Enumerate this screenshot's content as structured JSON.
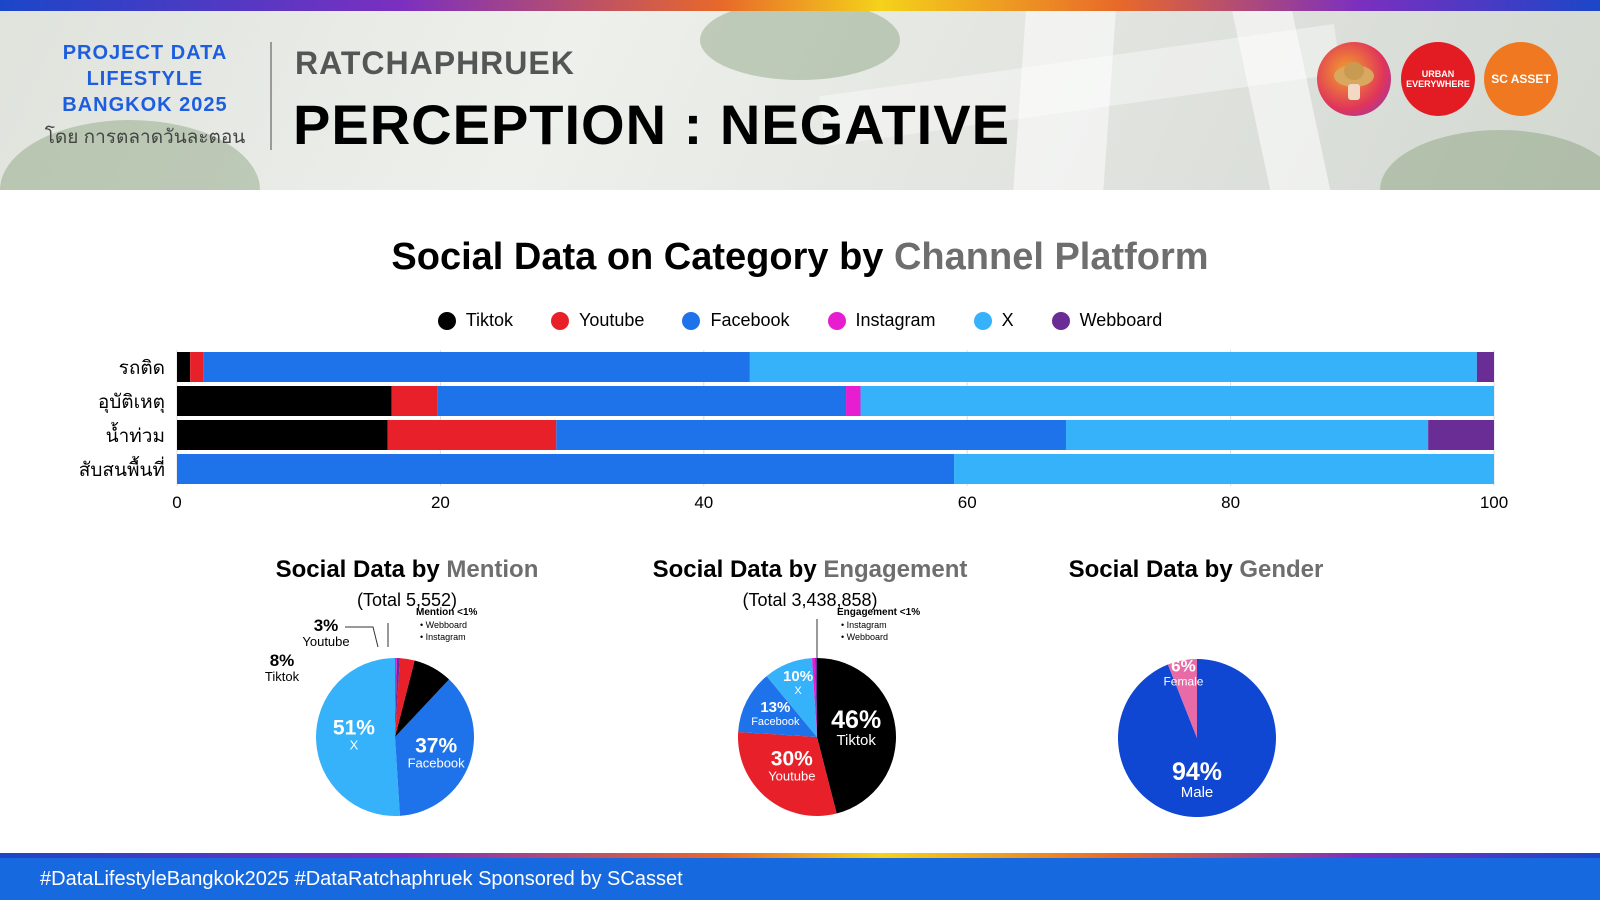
{
  "header": {
    "brand_lines": [
      "PROJECT DATA",
      "LIFESTYLE",
      "BANGKOK 2025"
    ],
    "brand_sub": "โดย การตลาดวันละตอน",
    "location": "RATCHAPHRUEK",
    "title": "PERCEPTION : NEGATIVE",
    "logos": {
      "urban": "URBAN EVERYWHERE",
      "sc": "SC ASSET"
    }
  },
  "main_title": {
    "part1": "Social Data on Category by ",
    "part2": "Channel Platform"
  },
  "colors": {
    "Tiktok": "#000000",
    "Youtube": "#e8202a",
    "Facebook": "#1f73ea",
    "Instagram": "#e61ed0",
    "X": "#36b2fb",
    "Webboard": "#6a2d96",
    "Male": "#0f46d2",
    "Female": "#e86aa6"
  },
  "chart_data": [
    {
      "type": "bar",
      "orientation": "horizontal",
      "stacked": true,
      "categories": [
        "รถติด",
        "อุบัติเหตุ",
        "น้ำท่วม",
        "สับสนพื้นที่"
      ],
      "series": [
        {
          "name": "Tiktok",
          "values": [
            1,
            16.3,
            16,
            0
          ]
        },
        {
          "name": "Youtube",
          "values": [
            1,
            3.5,
            12.8,
            0
          ]
        },
        {
          "name": "Facebook",
          "values": [
            41.5,
            31,
            38.7,
            59
          ]
        },
        {
          "name": "Instagram",
          "values": [
            0,
            1.1,
            0,
            0
          ]
        },
        {
          "name": "X",
          "values": [
            55.2,
            48.1,
            27.5,
            41
          ]
        },
        {
          "name": "Webboard",
          "values": [
            1.3,
            0,
            5,
            0
          ]
        }
      ],
      "xlim": [
        0,
        100
      ],
      "xticks": [
        0,
        20,
        40,
        60,
        80,
        100
      ],
      "legend_position": "top-center",
      "grid": true
    },
    {
      "type": "pie",
      "title": {
        "part1": "Social Data by ",
        "part2": "Mention"
      },
      "subtitle": "(Total 5,552)",
      "slices": [
        {
          "label": "X",
          "value": 51,
          "display": "51%"
        },
        {
          "label": "Facebook",
          "value": 37,
          "display": "37%"
        },
        {
          "label": "Tiktok",
          "value": 8,
          "display": "8%"
        },
        {
          "label": "Youtube",
          "value": 3,
          "display": "3%"
        },
        {
          "label": "Webboard",
          "value": 0.6
        },
        {
          "label": "Instagram",
          "value": 0.4
        }
      ],
      "note": {
        "title": "Mention <1%",
        "items": [
          "Webboard",
          "Instagram"
        ]
      }
    },
    {
      "type": "pie",
      "title": {
        "part1": "Social Data by ",
        "part2": "Engagement"
      },
      "subtitle": "(Total 3,438,858)",
      "slices": [
        {
          "label": "Tiktok",
          "value": 46,
          "display": "46%"
        },
        {
          "label": "Youtube",
          "value": 30,
          "display": "30%"
        },
        {
          "label": "Facebook",
          "value": 13,
          "display": "13%"
        },
        {
          "label": "X",
          "value": 10,
          "display": "10%"
        },
        {
          "label": "Instagram",
          "value": 0.6
        },
        {
          "label": "Webboard",
          "value": 0.4
        }
      ],
      "note": {
        "title": "Engagement <1%",
        "items": [
          "Instagram",
          "Webboard"
        ]
      }
    },
    {
      "type": "pie",
      "title": {
        "part1": "Social Data by ",
        "part2": "Gender"
      },
      "slices": [
        {
          "label": "Male",
          "value": 94,
          "display": "94%"
        },
        {
          "label": "Female",
          "value": 6,
          "display": "6%"
        }
      ]
    }
  ],
  "footer": {
    "text": "#DataLifestyleBangkok2025 #DataRatchaphruek Sponsored by SCasset"
  }
}
